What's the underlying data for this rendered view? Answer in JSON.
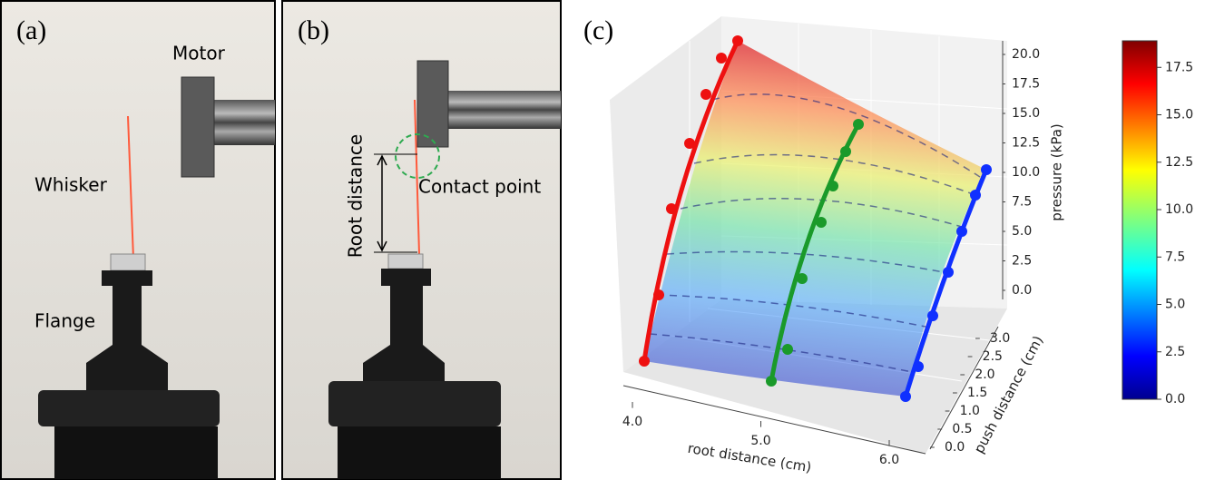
{
  "panels": [
    {
      "label": "(a)",
      "annotations": [
        "Motor",
        "Whisker",
        "Flange"
      ]
    },
    {
      "label": "(b)",
      "annotations": [
        "Root distance",
        "Contact point"
      ]
    },
    {
      "label": "(c)"
    }
  ],
  "surface_plot": {
    "x_label": "root distance (cm)",
    "y_label": "push distance (cm)",
    "z_label": "pressure (kPa)",
    "xticks": [
      {
        "value": 4,
        "label": "4.0"
      },
      {
        "value": 5,
        "label": "5.0"
      },
      {
        "value": 6,
        "label": "6.0"
      }
    ],
    "yticks": [
      {
        "value": 0,
        "label": "0.0"
      },
      0.5,
      {
        "value": 1,
        "label": "1.0"
      },
      1.5,
      {
        "value": 2,
        "label": "2.0"
      },
      2.5,
      {
        "value": 3,
        "label": "3.0"
      }
    ],
    "zticks": [
      {
        "value": 0,
        "label": "0.0"
      },
      2.5,
      {
        "value": 5,
        "label": "5.0"
      },
      7.5,
      {
        "value": 10,
        "label": "10.0"
      },
      12.5,
      {
        "value": 15,
        "label": "15.0"
      },
      17.5,
      {
        "value": 20,
        "label": "20.0"
      }
    ],
    "colorbar_lim": [
      0,
      18.9
    ],
    "colorbar_ticks": [
      {
        "value": 0,
        "label": "0.0"
      },
      2.5,
      {
        "value": 5,
        "label": "5.0"
      },
      7.5,
      {
        "value": 10,
        "label": "10.0"
      },
      12.5,
      {
        "value": 15,
        "label": "15.0"
      },
      17.5
    ]
  }
}
